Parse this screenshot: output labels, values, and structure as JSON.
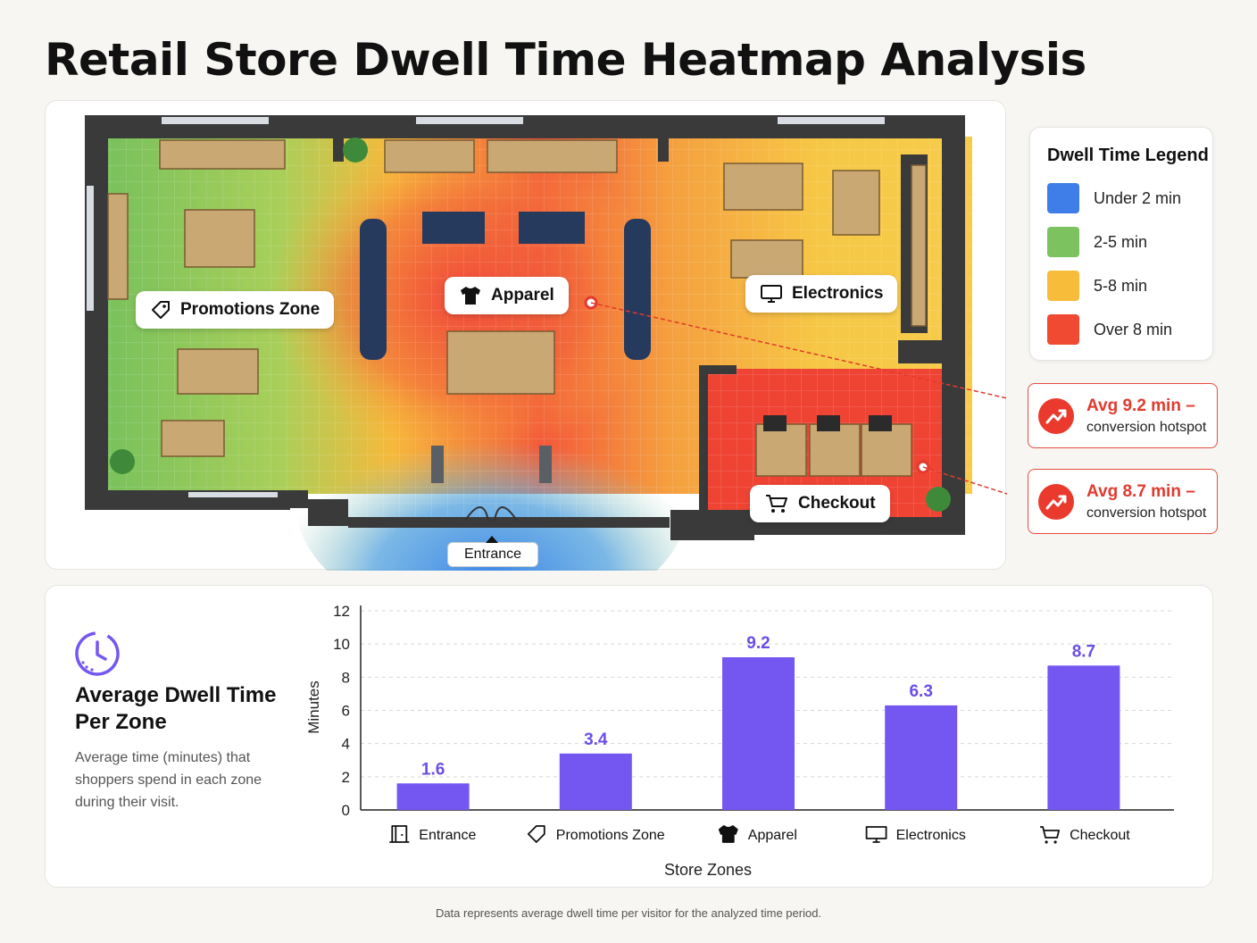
{
  "title": "Retail Store Dwell Time Heatmap Analysis",
  "map": {
    "zones": {
      "promotions": "Promotions Zone",
      "apparel": "Apparel",
      "electronics": "Electronics",
      "checkout": "Checkout",
      "entrance": "Entrance"
    }
  },
  "legend": {
    "title": "Dwell Time Legend",
    "items": [
      {
        "label": "Under 2 min",
        "color": "#3f7ee8"
      },
      {
        "label": "2-5 min",
        "color": "#7cc25f"
      },
      {
        "label": "5-8 min",
        "color": "#f6bc3a"
      },
      {
        "label": "Over 8 min",
        "color": "#f04a32"
      }
    ]
  },
  "hotspots": [
    {
      "value": "Avg 9.2 min –",
      "sub": "conversion hotspot"
    },
    {
      "value": "Avg 8.7 min –",
      "sub": "conversion hotspot"
    }
  ],
  "chart_panel": {
    "title": "Average Dwell Time Per Zone",
    "description": "Average time (minutes) that shoppers spend in each zone during their visit."
  },
  "chart_data": {
    "type": "bar",
    "categories": [
      "Entrance",
      "Promotions Zone",
      "Apparel",
      "Electronics",
      "Checkout"
    ],
    "category_icons": [
      "door-icon",
      "tag-icon",
      "shirt-icon",
      "monitor-icon",
      "cart-icon"
    ],
    "values": [
      1.6,
      3.4,
      9.2,
      6.3,
      8.7
    ],
    "value_labels": [
      "1.6",
      "3.4",
      "9.2",
      "6.3",
      "8.7"
    ],
    "xlabel": "Store Zones",
    "ylabel": "Minutes",
    "ylim": [
      0,
      12
    ],
    "yticks": [
      "0",
      "2",
      "4",
      "6",
      "8",
      "10",
      "12"
    ],
    "bar_color": "#7456f1",
    "grid": true
  },
  "footnote": "Data represents average dwell time per visitor for the analyzed time period."
}
